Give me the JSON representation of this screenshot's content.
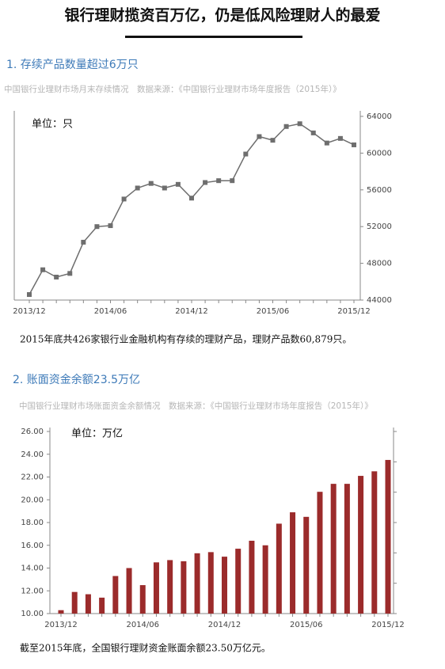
{
  "title": "银行理财揽资百万亿，仍是低风险理财人的最爱",
  "chart_data": [
    {
      "type": "line",
      "title": "1. 存续产品数量超过6万只",
      "subtitle": "中国银行业理财市场月末存续情况　数据来源：《中国银行业理财市场年度报告（2015年）》",
      "unit": "单位：只",
      "note": "2015年底共426家银行业金融机构有存续的理财产品，理财产品数60,879只。",
      "categories": [
        "2013/12",
        null,
        null,
        null,
        null,
        null,
        "2014/06",
        null,
        null,
        null,
        null,
        null,
        "2014/12",
        null,
        null,
        null,
        null,
        null,
        "2015/06",
        null,
        null,
        null,
        null,
        null,
        "2015/12"
      ],
      "values": [
        44600,
        47300,
        46500,
        46900,
        50300,
        52000,
        52100,
        55000,
        56200,
        56700,
        56200,
        56600,
        55100,
        56800,
        57000,
        57000,
        59900,
        61800,
        61400,
        62900,
        63200,
        62200,
        61100,
        61600,
        60900
      ],
      "color": "#6e6e6e",
      "ylim": [
        44000,
        64000
      ],
      "yticks": [
        44000,
        48000,
        52000,
        56000,
        60000,
        64000
      ],
      "yaxis": "right"
    },
    {
      "type": "bar",
      "title": "2. 账面资金余额23.5万亿",
      "subtitle": "中国银行业理财市场账面资金余额情况　数据来源：《中国银行业理财市场年度报告（2015年）》",
      "unit": "单位：万亿",
      "note": "截至2015年底，全国银行理财资金账面余额23.50万亿元。",
      "categories": [
        "2013/12",
        null,
        null,
        null,
        null,
        null,
        "2014/06",
        null,
        null,
        null,
        null,
        null,
        "2014/12",
        null,
        null,
        null,
        null,
        null,
        "2015/06",
        null,
        null,
        null,
        null,
        null,
        "2015/12"
      ],
      "values": [
        10.3,
        11.9,
        11.7,
        11.4,
        13.3,
        14.0,
        12.5,
        14.5,
        14.7,
        14.6,
        15.3,
        15.4,
        15.0,
        15.7,
        16.4,
        16.0,
        17.9,
        18.9,
        18.5,
        20.7,
        21.4,
        21.4,
        22.1,
        22.5,
        23.5
      ],
      "color": "#9b2b2b",
      "ylim": [
        10,
        26
      ],
      "yticks": [
        {
          "value": 10,
          "label": "10.00"
        },
        {
          "value": 12,
          "label": "12.00"
        },
        {
          "value": 14,
          "label": "14.00"
        },
        {
          "value": 16,
          "label": "16.00"
        },
        {
          "value": 18,
          "label": "18.00"
        },
        {
          "value": 20,
          "label": "20.00"
        },
        {
          "value": 22,
          "label": "22.00"
        },
        {
          "value": 24,
          "label": "24.00"
        },
        {
          "value": 26,
          "label": "26.00"
        }
      ],
      "yaxis": "left"
    }
  ]
}
